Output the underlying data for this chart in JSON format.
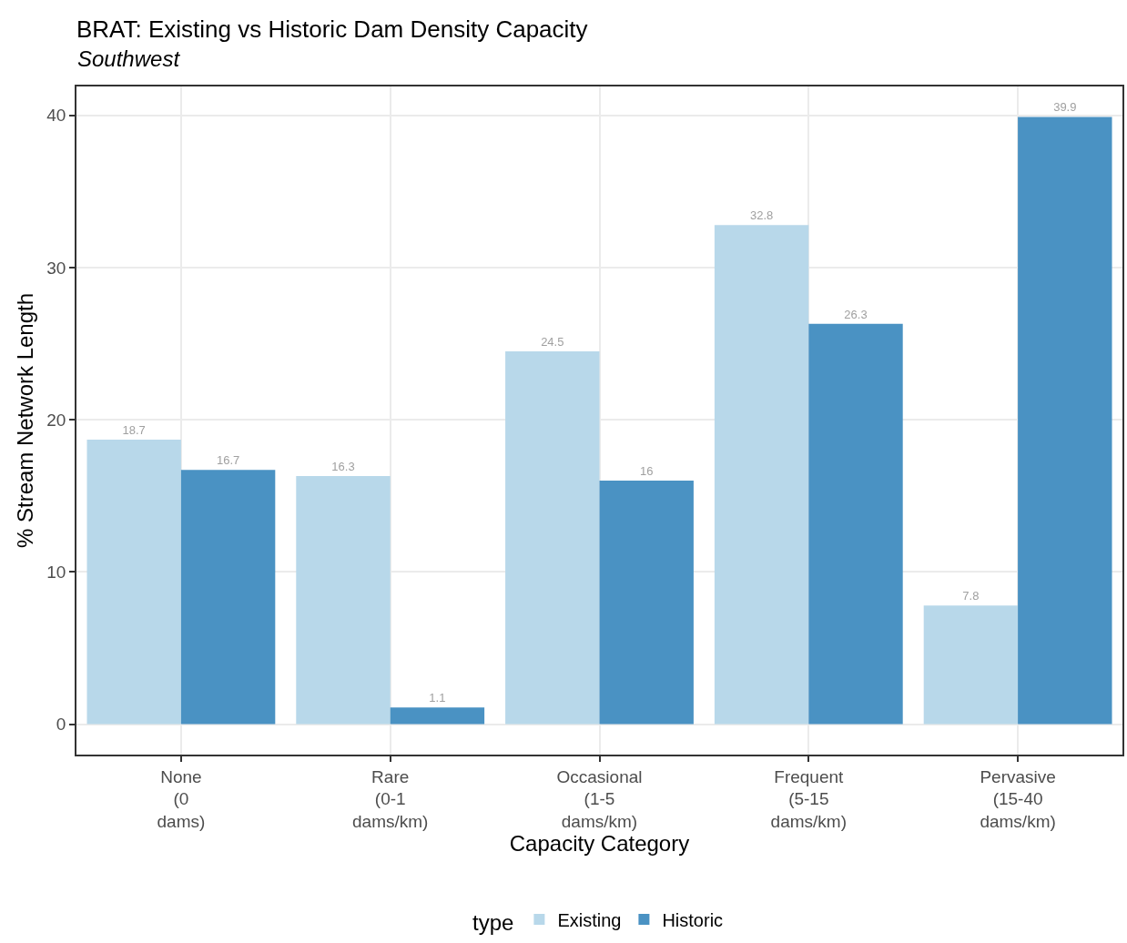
{
  "chart_data": {
    "type": "bar",
    "title": "BRAT: Existing vs Historic Dam Density Capacity",
    "subtitle": "Southwest",
    "xlabel": "Capacity Category",
    "ylabel": "% Stream Network Length",
    "legend_title": "type",
    "categories": [
      "None\n(0\ndams)",
      "Rare\n(0-1\ndams/km)",
      "Occasional\n(1-5\ndams/km)",
      "Frequent\n(5-15\ndams/km)",
      "Pervasive\n(15-40\ndams/km)"
    ],
    "series": [
      {
        "name": "Existing",
        "color": "#b8d8ea",
        "values": [
          18.7,
          16.3,
          24.5,
          32.8,
          7.8
        ]
      },
      {
        "name": "Historic",
        "color": "#4a92c3",
        "values": [
          16.7,
          1.1,
          16,
          26.3,
          39.9
        ]
      }
    ],
    "ylim": [
      -2,
      41.9
    ],
    "yticks": [
      0,
      10,
      20,
      30,
      40
    ],
    "grid": true,
    "legend": "bottom",
    "data_labels": true
  }
}
